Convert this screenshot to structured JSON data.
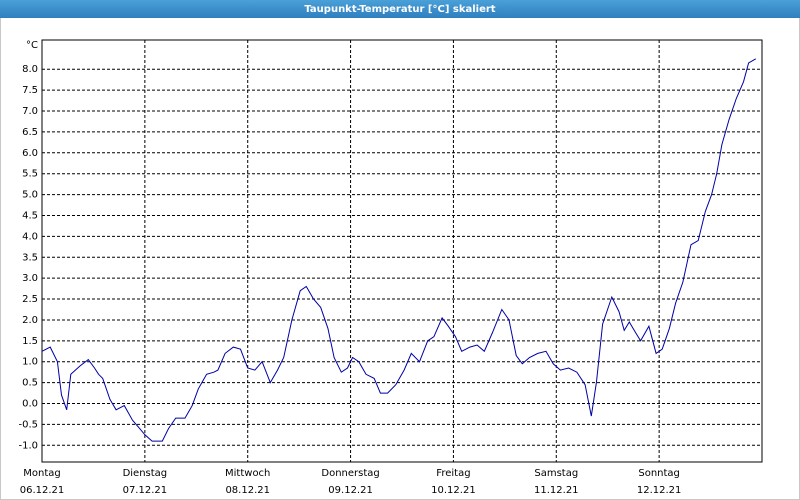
{
  "chart_data": {
    "type": "line",
    "title": "Taupunkt-Temperatur [°C] skaliert",
    "y_label": "°C",
    "grid": true,
    "xlim": [
      0,
      7
    ],
    "ylim": [
      -1.4,
      8.7
    ],
    "xticks": [
      {
        "value": 0,
        "label": [
          "Montag",
          "06.12.21"
        ]
      },
      {
        "value": 1,
        "label": [
          "Dienstag",
          "07.12.21"
        ]
      },
      {
        "value": 2,
        "label": [
          "Mittwoch",
          "08.12.21"
        ]
      },
      {
        "value": 3,
        "label": [
          "Donnerstag",
          "09.12.21"
        ]
      },
      {
        "value": 4,
        "label": [
          "Freitag",
          "10.12.21"
        ]
      },
      {
        "value": 5,
        "label": [
          "Samstag",
          "11.12.21"
        ]
      },
      {
        "value": 6,
        "label": [
          "Sonntag",
          "12.12.21"
        ]
      }
    ],
    "yticks": [
      {
        "value": 8,
        "label": "8.0"
      },
      7.5,
      {
        "value": 7,
        "label": "7.0"
      },
      6.5,
      {
        "value": 6,
        "label": "6.0"
      },
      5.5,
      {
        "value": 5,
        "label": "5.0"
      },
      4.5,
      {
        "value": 4,
        "label": "4.0"
      },
      3.5,
      {
        "value": 3,
        "label": "3.0"
      },
      2.5,
      {
        "value": 2,
        "label": "2.0"
      },
      1.5,
      {
        "value": 1,
        "label": "1.0"
      },
      0.5,
      {
        "value": 0,
        "label": "0.0"
      },
      -0.5,
      {
        "value": -1,
        "label": "-1.0"
      }
    ],
    "series": [
      {
        "color": "#0000a8",
        "x": [
          0,
          0.08,
          0.15,
          0.19,
          0.24,
          0.28,
          0.37,
          0.45,
          0.51,
          0.55,
          0.59,
          0.66,
          0.72,
          0.8,
          0.88,
          0.95,
          1.0,
          1.07,
          1.17,
          1.23,
          1.3,
          1.39,
          1.46,
          1.52,
          1.6,
          1.67,
          1.71,
          1.78,
          1.86,
          1.93,
          2.0,
          2.07,
          2.14,
          2.22,
          2.29,
          2.35,
          2.43,
          2.51,
          2.57,
          2.64,
          2.71,
          2.78,
          2.84,
          2.91,
          2.97,
          3.02,
          3.08,
          3.15,
          3.23,
          3.29,
          3.36,
          3.44,
          3.52,
          3.59,
          3.67,
          3.75,
          3.81,
          3.89,
          3.95,
          4.02,
          4.08,
          4.16,
          4.23,
          4.3,
          4.38,
          4.47,
          4.54,
          4.61,
          4.67,
          4.74,
          4.82,
          4.9,
          4.97,
          5.04,
          5.12,
          5.2,
          5.28,
          5.34,
          5.39,
          5.45,
          5.54,
          5.61,
          5.66,
          5.71,
          5.77,
          5.82,
          5.9,
          5.97,
          6.03,
          6.1,
          6.16,
          6.23,
          6.31,
          6.38,
          6.45,
          6.51,
          6.56,
          6.61,
          6.68,
          6.75,
          6.82,
          6.87,
          6.94
        ],
        "values": [
          1.25,
          1.35,
          1.0,
          0.2,
          -0.15,
          0.7,
          0.9,
          1.05,
          0.85,
          0.7,
          0.6,
          0.1,
          -0.15,
          -0.05,
          -0.4,
          -0.6,
          -0.75,
          -0.9,
          -0.9,
          -0.6,
          -0.35,
          -0.35,
          -0.05,
          0.35,
          0.7,
          0.75,
          0.8,
          1.2,
          1.35,
          1.3,
          0.85,
          0.8,
          1.0,
          0.5,
          0.8,
          1.1,
          2.0,
          2.7,
          2.8,
          2.5,
          2.3,
          1.8,
          1.1,
          0.75,
          0.85,
          1.1,
          1.0,
          0.7,
          0.6,
          0.25,
          0.25,
          0.45,
          0.8,
          1.2,
          1.0,
          1.5,
          1.6,
          2.05,
          1.85,
          1.6,
          1.25,
          1.35,
          1.4,
          1.25,
          1.7,
          2.25,
          2.0,
          1.15,
          0.95,
          1.1,
          1.2,
          1.25,
          0.95,
          0.8,
          0.85,
          0.75,
          0.45,
          -0.3,
          0.5,
          1.9,
          2.55,
          2.2,
          1.75,
          1.95,
          1.7,
          1.5,
          1.85,
          1.2,
          1.3,
          1.8,
          2.4,
          2.9,
          3.8,
          3.9,
          4.6,
          5.0,
          5.5,
          6.2,
          6.8,
          7.3,
          7.7,
          8.15,
          8.25
        ]
      }
    ]
  }
}
